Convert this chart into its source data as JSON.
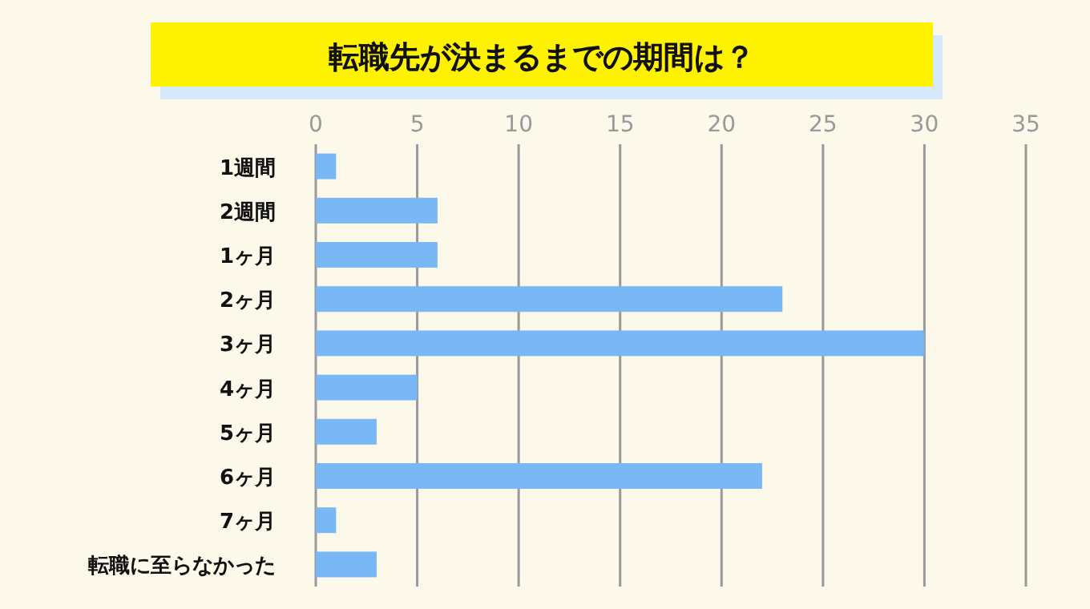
{
  "chart_data": {
    "type": "bar",
    "orientation": "horizontal",
    "title": "転職先が決まるまでの期間は？",
    "categories": [
      "1週間",
      "2週間",
      "1ヶ月",
      "2ヶ月",
      "3ヶ月",
      "4ヶ月",
      "5ヶ月",
      "6ヶ月",
      "7ヶ月",
      "転職に至らなかった"
    ],
    "values": [
      1,
      6,
      6,
      23,
      30,
      5,
      3,
      22,
      1,
      3
    ],
    "color": "#7ab8f5",
    "xlim": [
      0,
      35
    ],
    "xticks": [
      0,
      5,
      10,
      15,
      20,
      25,
      30,
      35
    ],
    "grid": "x"
  }
}
